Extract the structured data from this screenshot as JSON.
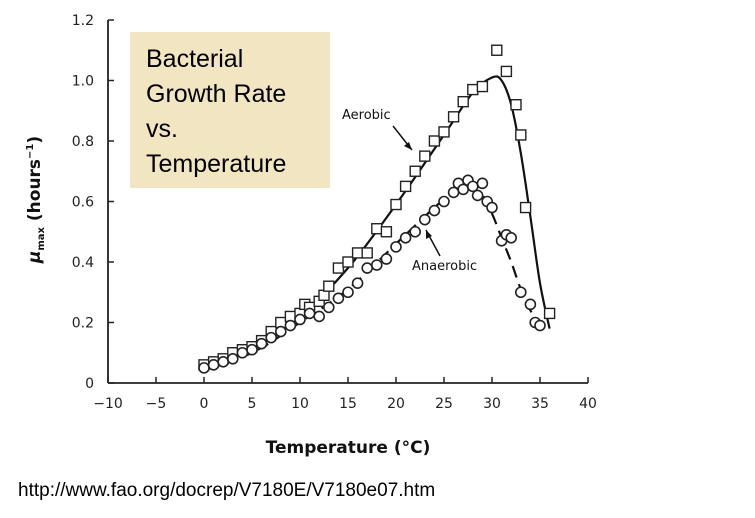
{
  "chart_data": {
    "type": "scatter",
    "title_lines": [
      "Bacterial",
      "Growth Rate",
      "vs.",
      "Temperature"
    ],
    "xlabel": "Temperature (°C)",
    "ylabel_main": "μ",
    "ylabel_sub": "max",
    "ylabel_units": "(hours",
    "ylabel_exp": "−1",
    "ylabel_close": ")",
    "xlim": [
      -10,
      40
    ],
    "ylim": [
      0,
      1.2
    ],
    "x_ticks": [
      -10,
      -5,
      0,
      5,
      10,
      15,
      20,
      25,
      30,
      35,
      40
    ],
    "x_tick_labels": [
      "−10",
      "−5",
      "0",
      "5",
      "10",
      "15",
      "20",
      "25",
      "30",
      "35",
      "40"
    ],
    "y_ticks": [
      0,
      0.2,
      0.4,
      0.6,
      0.8,
      1.0,
      1.2
    ],
    "y_tick_labels": [
      "0",
      "0.2",
      "0.4",
      "0.6",
      "0.8",
      "1.0",
      "1.2"
    ],
    "series": [
      {
        "name": "Aerobic",
        "marker": "square",
        "line_style": "solid",
        "points": [
          [
            0,
            0.06
          ],
          [
            1,
            0.07
          ],
          [
            2,
            0.08
          ],
          [
            3,
            0.1
          ],
          [
            4,
            0.11
          ],
          [
            5,
            0.12
          ],
          [
            6,
            0.14
          ],
          [
            7,
            0.17
          ],
          [
            8,
            0.2
          ],
          [
            9,
            0.22
          ],
          [
            10,
            0.23
          ],
          [
            10.5,
            0.26
          ],
          [
            11,
            0.25
          ],
          [
            12,
            0.27
          ],
          [
            12.5,
            0.29
          ],
          [
            13,
            0.32
          ],
          [
            14,
            0.38
          ],
          [
            15,
            0.4
          ],
          [
            16,
            0.43
          ],
          [
            17,
            0.43
          ],
          [
            18,
            0.51
          ],
          [
            19,
            0.5
          ],
          [
            20,
            0.59
          ],
          [
            21,
            0.65
          ],
          [
            22,
            0.7
          ],
          [
            23,
            0.75
          ],
          [
            24,
            0.8
          ],
          [
            25,
            0.83
          ],
          [
            26,
            0.88
          ],
          [
            27,
            0.93
          ],
          [
            28,
            0.97
          ],
          [
            29,
            0.98
          ],
          [
            30.5,
            1.1
          ],
          [
            31.5,
            1.03
          ],
          [
            32.5,
            0.92
          ],
          [
            33,
            0.82
          ],
          [
            33.5,
            0.58
          ],
          [
            36,
            0.23
          ]
        ],
        "fit_curve": [
          [
            0,
            0.05
          ],
          [
            5,
            0.11
          ],
          [
            10,
            0.22
          ],
          [
            15,
            0.38
          ],
          [
            20,
            0.59
          ],
          [
            25,
            0.82
          ],
          [
            28,
            0.96
          ],
          [
            30,
            1.01
          ],
          [
            31,
            1.0
          ],
          [
            32,
            0.92
          ],
          [
            33,
            0.76
          ],
          [
            34,
            0.55
          ],
          [
            35,
            0.33
          ],
          [
            36,
            0.18
          ]
        ]
      },
      {
        "name": "Anaerobic",
        "marker": "circle",
        "line_style": "dashed",
        "points": [
          [
            0,
            0.05
          ],
          [
            1,
            0.06
          ],
          [
            2,
            0.07
          ],
          [
            3,
            0.08
          ],
          [
            4,
            0.1
          ],
          [
            5,
            0.11
          ],
          [
            6,
            0.13
          ],
          [
            7,
            0.15
          ],
          [
            8,
            0.17
          ],
          [
            9,
            0.19
          ],
          [
            10,
            0.21
          ],
          [
            11,
            0.23
          ],
          [
            12,
            0.22
          ],
          [
            13,
            0.25
          ],
          [
            14,
            0.28
          ],
          [
            15,
            0.3
          ],
          [
            16,
            0.33
          ],
          [
            17,
            0.38
          ],
          [
            18,
            0.39
          ],
          [
            19,
            0.41
          ],
          [
            20,
            0.45
          ],
          [
            21,
            0.48
          ],
          [
            22,
            0.5
          ],
          [
            23,
            0.54
          ],
          [
            24,
            0.57
          ],
          [
            25,
            0.6
          ],
          [
            26,
            0.63
          ],
          [
            26.5,
            0.66
          ],
          [
            27,
            0.64
          ],
          [
            27.5,
            0.67
          ],
          [
            28,
            0.65
          ],
          [
            28.5,
            0.62
          ],
          [
            29,
            0.66
          ],
          [
            29.5,
            0.6
          ],
          [
            30,
            0.58
          ],
          [
            31,
            0.47
          ],
          [
            31.5,
            0.49
          ],
          [
            32,
            0.48
          ],
          [
            33,
            0.3
          ],
          [
            34,
            0.26
          ],
          [
            34.5,
            0.2
          ],
          [
            35,
            0.19
          ]
        ],
        "fit_curve": [
          [
            0,
            0.05
          ],
          [
            5,
            0.1
          ],
          [
            10,
            0.2
          ],
          [
            15,
            0.31
          ],
          [
            20,
            0.46
          ],
          [
            24,
            0.58
          ],
          [
            26,
            0.63
          ],
          [
            27.5,
            0.645
          ],
          [
            29,
            0.62
          ],
          [
            30,
            0.56
          ],
          [
            31,
            0.48
          ],
          [
            32,
            0.4
          ],
          [
            33,
            0.31
          ],
          [
            34,
            0.24
          ],
          [
            35,
            0.19
          ]
        ]
      }
    ],
    "annotations": [
      "Aerobic",
      "Anaerobic"
    ],
    "grid": false,
    "source_url": "http://www.fao.org/docrep/V7180E/V7180e07.htm"
  }
}
